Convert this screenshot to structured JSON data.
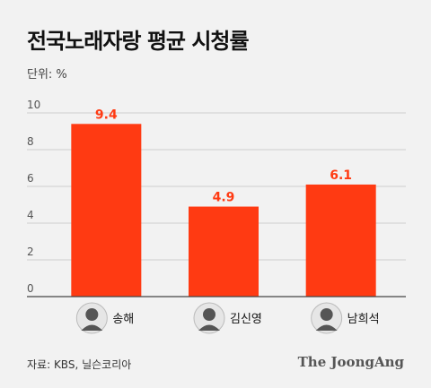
{
  "title": "전국노래자랑 평균 시청률",
  "unit_label": "단위: %",
  "source": "자료: KBS, 닐슨코리아",
  "brand": "The JoongAng",
  "colors": {
    "bar": "#ff3a12",
    "grid": "#cfcfcf",
    "axis": "#444444",
    "background": "#f2f2f2"
  },
  "chart_data": {
    "type": "bar",
    "categories": [
      "송해",
      "김신영",
      "남희석"
    ],
    "values": [
      9.4,
      4.9,
      6.1
    ],
    "data_labels": [
      "9.4",
      "4.9",
      "6.1"
    ],
    "y_ticks": [
      "10",
      "8",
      "6",
      "4",
      "2",
      "0"
    ],
    "ylim": [
      0,
      10
    ],
    "grid": true,
    "legend": "none",
    "icons": [
      "portrait-icon",
      "portrait-icon",
      "portrait-icon"
    ]
  }
}
